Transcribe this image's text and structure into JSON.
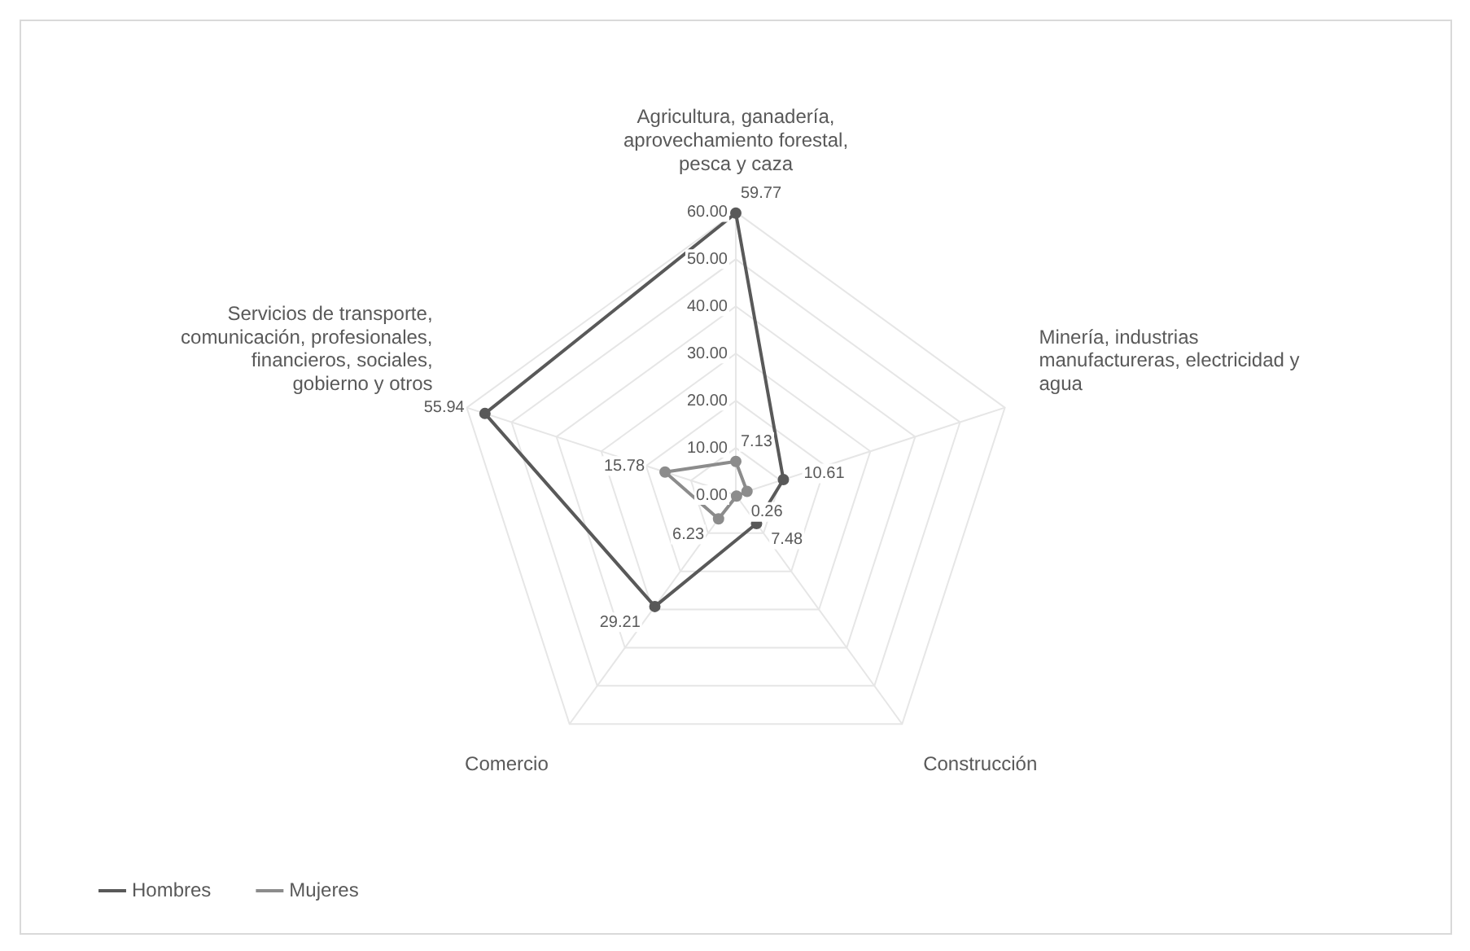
{
  "chart_data": {
    "type": "radar",
    "categories": [
      "Agricultura, ganadería, aprovechamiento forestal, pesca y caza",
      "Minería, industrias manufactureras, electricidad y agua",
      "Construcción",
      "Comercio",
      "Servicios de transporte, comunicación, profesionales, financieros, sociales, gobierno y otros"
    ],
    "series": [
      {
        "name": "Hombres",
        "color": "#595959",
        "values": [
          59.77,
          10.61,
          7.48,
          29.21,
          55.94
        ],
        "value_labels": [
          "59.77",
          "10.61",
          "7.48",
          "29.21",
          "55.94"
        ]
      },
      {
        "name": "Mujeres",
        "color": "#8c8c8c",
        "values": [
          7.13,
          2.5,
          0.26,
          6.23,
          15.78
        ],
        "value_labels": [
          "7.13",
          null,
          "0.26",
          "6.23",
          "15.78"
        ]
      }
    ],
    "ylim": [
      0,
      60
    ],
    "yticks": [
      {
        "value": 0,
        "label": "0.00"
      },
      {
        "value": 10,
        "label": "10.00"
      },
      {
        "value": 20,
        "label": "20.00"
      },
      {
        "value": 30,
        "label": "30.00"
      },
      {
        "value": 40,
        "label": "40.00"
      },
      {
        "value": 50,
        "label": "50.00"
      },
      {
        "value": 60,
        "label": "60.00"
      }
    ],
    "grid": true,
    "legend": "bottom left",
    "marker": "circle"
  }
}
